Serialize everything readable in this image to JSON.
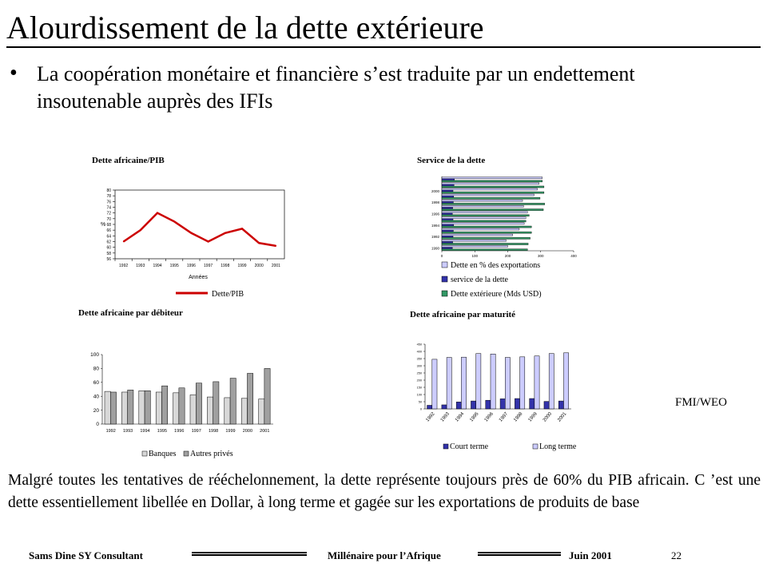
{
  "slide": {
    "title": "Alourdissement de la dette extérieure",
    "bullet": "La coopération monétaire et financière s’est traduite par un endettement insoutenable auprès des IFIs",
    "source": "FMI/WEO",
    "summary": "Malgré toutes les tentatives de rééchelonnement, la dette représente toujours près de 60% du PIB africain. C ’est une dette essentiellement libellée en Dollar, à long terme et gagée sur les exportations de produits de base"
  },
  "footer": {
    "left": "Sams Dine SY Consultant",
    "center": "Millénaire pour l’Afrique",
    "date": "Juin  2001",
    "page": "22"
  },
  "colors": {
    "red_line": "#cc0000",
    "blue_bar": "#3333aa",
    "green_bar": "#339966",
    "lavender_bar": "#ccccff",
    "grey_bar": "#a0a0a0",
    "light_bar": "#d8d8d8"
  },
  "chart_data": [
    {
      "type": "line",
      "title": "Dette africaine/PIB",
      "xlabel": "Années",
      "ylabel": "%",
      "x": [
        "1992",
        "1993",
        "1994",
        "1995",
        "1996",
        "1997",
        "1998",
        "1999",
        "2000",
        "2001"
      ],
      "series": [
        {
          "name": "Dette/PIB",
          "values": [
            62,
            66,
            72,
            69,
            65,
            62,
            65,
            66.5,
            61.5,
            60.5
          ]
        }
      ],
      "yticks": [
        "56",
        "58",
        "60",
        "62",
        "64",
        "66",
        "68",
        "70",
        "72",
        "74",
        "76",
        "78",
        "80"
      ],
      "ylim": [
        56,
        80
      ],
      "legend": "bottom"
    },
    {
      "type": "bar",
      "orientation": "horizontal",
      "title": "Service de la dette",
      "ytick_labels": [
        "1990",
        "1992",
        "1994",
        "1996",
        "1998",
        "2000"
      ],
      "xticks": [
        "0",
        "100",
        "200",
        "300",
        "400"
      ],
      "xlim": [
        0,
        400
      ],
      "series": [
        {
          "name": "Dette en % des exportations",
          "values": [
            200,
            195,
            215,
            235,
            250,
            255,
            260,
            248,
            245,
            280,
            290,
            295,
            305
          ]
        },
        {
          "name": "service de la dette",
          "values": [
            32,
            33,
            34,
            35,
            36,
            34,
            32,
            33,
            35,
            36,
            34,
            37,
            38
          ]
        },
        {
          "name": "Dette extérieure (Mds USD)",
          "values": [
            260,
            262,
            268,
            272,
            272,
            255,
            265,
            308,
            312,
            298,
            310,
            310,
            305
          ]
        }
      ],
      "legend": "bottom"
    },
    {
      "type": "bar",
      "title": "Dette africaine par débiteur",
      "categories": [
        "1992",
        "1993",
        "1994",
        "1995",
        "1996",
        "1997",
        "1998",
        "1999",
        "2000",
        "2001"
      ],
      "yticks": [
        "0",
        "20",
        "40",
        "60",
        "80",
        "100"
      ],
      "ylim": [
        0,
        100
      ],
      "series": [
        {
          "name": "Banques",
          "values": [
            47,
            46,
            48,
            46,
            45,
            42,
            39,
            38,
            37,
            36
          ]
        },
        {
          "name": "Autres privés",
          "values": [
            46,
            49,
            48,
            55,
            52,
            59,
            61,
            66,
            73,
            80
          ]
        }
      ],
      "legend": "bottom"
    },
    {
      "type": "bar",
      "title": "Dette africaine par maturité",
      "categories": [
        "1992",
        "1993",
        "1994",
        "1995",
        "1996",
        "1997",
        "1998",
        "1999",
        "2000",
        "2001"
      ],
      "yticks": [
        "0",
        "50",
        "100",
        "150",
        "200",
        "250",
        "300",
        "350",
        "400",
        "450"
      ],
      "ylim": [
        0,
        450
      ],
      "series": [
        {
          "name": "Court terme",
          "values": [
            25,
            28,
            48,
            55,
            60,
            70,
            72,
            72,
            52,
            55
          ]
        },
        {
          "name": "Long terme",
          "values": [
            345,
            358,
            360,
            385,
            382,
            358,
            362,
            368,
            385,
            390
          ]
        }
      ],
      "legend": "bottom"
    }
  ]
}
